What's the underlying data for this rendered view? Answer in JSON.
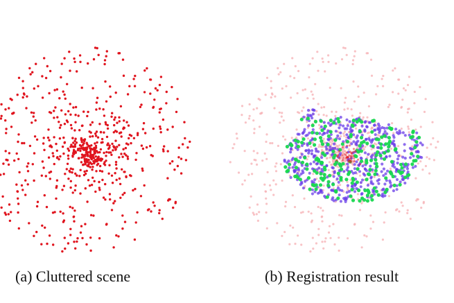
{
  "figure": {
    "panels": [
      {
        "caption": "(a) Cluttered scene"
      },
      {
        "caption": "(b) Registration result"
      }
    ],
    "colors": {
      "scene_points": "#e0141e",
      "scene_points_faded": "#f6b4b8",
      "model_points": "#6a3de8",
      "correspondence_points": "#18d850"
    }
  }
}
